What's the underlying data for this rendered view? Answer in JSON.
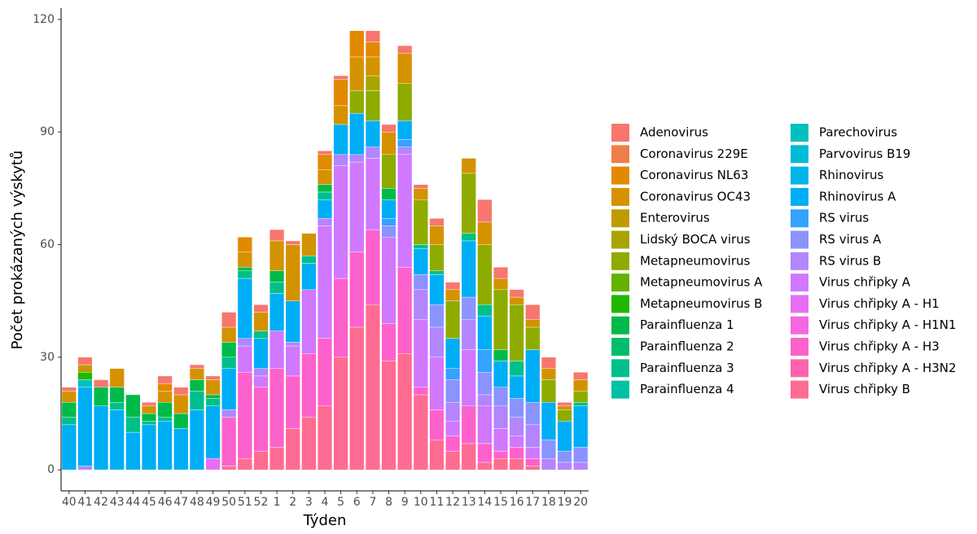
{
  "chart_data": {
    "type": "stacked_bar",
    "x_label": "Týden",
    "y_label": "Počet prokázaných výskytů",
    "categories": [
      "40",
      "41",
      "42",
      "43",
      "44",
      "45",
      "46",
      "47",
      "48",
      "49",
      "50",
      "51",
      "52",
      "1",
      "2",
      "3",
      "4",
      "5",
      "6",
      "7",
      "8",
      "9",
      "10",
      "11",
      "12",
      "13",
      "14",
      "15",
      "16",
      "17",
      "18",
      "19",
      "20"
    ],
    "ylim": [
      -5.6,
      123
    ],
    "yticks": [
      0,
      30,
      60,
      90,
      120
    ],
    "grid": false,
    "legend": "right",
    "series": [
      {
        "name": "Adenovirus",
        "color": "#F8766D",
        "values": [
          1,
          2,
          2,
          0,
          0,
          1,
          2,
          2,
          1,
          1,
          4,
          0,
          2,
          3,
          1,
          0,
          1,
          1,
          0,
          3,
          2,
          2,
          1,
          2,
          2,
          0,
          6,
          3,
          2,
          4,
          3,
          1,
          2
        ]
      },
      {
        "name": "Coronavirus 229E",
        "color": "#EE7F48",
        "values": [
          0,
          0,
          0,
          0,
          0,
          0,
          0,
          0,
          0,
          0,
          0,
          0,
          0,
          0,
          0,
          0,
          0,
          0,
          0,
          0,
          0,
          0,
          0,
          0,
          0,
          0,
          0,
          0,
          0,
          0,
          0,
          0,
          0
        ]
      },
      {
        "name": "Coronavirus NL63",
        "color": "#E38900",
        "values": [
          0,
          0,
          0,
          0,
          0,
          0,
          2,
          0,
          0,
          0,
          0,
          4,
          0,
          0,
          0,
          0,
          4,
          7,
          7,
          4,
          0,
          0,
          0,
          0,
          0,
          0,
          0,
          0,
          0,
          0,
          0,
          0,
          0
        ]
      },
      {
        "name": "Coronavirus OC43",
        "color": "#D49200",
        "values": [
          3,
          0,
          0,
          5,
          0,
          2,
          3,
          5,
          3,
          4,
          4,
          4,
          5,
          8,
          15,
          6,
          4,
          5,
          9,
          5,
          6,
          8,
          3,
          5,
          3,
          4,
          6,
          3,
          2,
          2,
          3,
          1,
          3
        ]
      },
      {
        "name": "Enterovirus",
        "color": "#C09B00",
        "values": [
          0,
          2,
          0,
          0,
          0,
          0,
          0,
          0,
          0,
          0,
          0,
          0,
          0,
          0,
          0,
          0,
          0,
          0,
          0,
          0,
          0,
          0,
          0,
          0,
          0,
          0,
          0,
          0,
          0,
          0,
          0,
          0,
          0
        ]
      },
      {
        "name": "Lidský BOCA virus",
        "color": "#A9A400",
        "values": [
          0,
          0,
          0,
          0,
          0,
          0,
          0,
          0,
          0,
          0,
          0,
          0,
          0,
          0,
          0,
          0,
          0,
          0,
          0,
          4,
          0,
          0,
          0,
          0,
          0,
          0,
          0,
          0,
          0,
          0,
          0,
          0,
          0
        ]
      },
      {
        "name": "Metapneumovirus",
        "color": "#8EAB00",
        "values": [
          0,
          0,
          0,
          0,
          0,
          0,
          0,
          0,
          0,
          0,
          0,
          0,
          0,
          0,
          0,
          0,
          0,
          0,
          6,
          8,
          9,
          10,
          12,
          7,
          10,
          16,
          16,
          16,
          15,
          6,
          6,
          3,
          3
        ]
      },
      {
        "name": "Metapneumovirus A",
        "color": "#64B200",
        "values": [
          0,
          0,
          0,
          0,
          0,
          0,
          0,
          0,
          0,
          0,
          0,
          0,
          0,
          0,
          0,
          0,
          0,
          0,
          0,
          0,
          0,
          0,
          0,
          0,
          0,
          0,
          0,
          0,
          0,
          0,
          0,
          0,
          0
        ]
      },
      {
        "name": "Metapneumovirus B",
        "color": "#1FB700",
        "values": [
          0,
          2,
          0,
          0,
          0,
          0,
          0,
          0,
          0,
          0,
          0,
          0,
          0,
          0,
          0,
          0,
          0,
          0,
          0,
          0,
          0,
          0,
          0,
          0,
          0,
          0,
          0,
          0,
          0,
          0,
          0,
          0,
          0
        ]
      },
      {
        "name": "Parainfluenza 1",
        "color": "#00BA4A",
        "values": [
          4,
          0,
          5,
          4,
          6,
          2,
          4,
          4,
          3,
          1,
          4,
          1,
          0,
          3,
          0,
          0,
          2,
          0,
          0,
          0,
          3,
          0,
          0,
          0,
          0,
          0,
          0,
          3,
          0,
          0,
          0,
          0,
          0
        ]
      },
      {
        "name": "Parainfluenza 2",
        "color": "#00BD6C",
        "values": [
          0,
          0,
          0,
          0,
          0,
          0,
          0,
          0,
          0,
          0,
          0,
          0,
          0,
          0,
          0,
          0,
          0,
          0,
          0,
          0,
          0,
          0,
          0,
          0,
          0,
          0,
          0,
          0,
          0,
          0,
          0,
          0,
          0
        ]
      },
      {
        "name": "Parainfluenza 3",
        "color": "#00BF8A",
        "values": [
          2,
          0,
          0,
          2,
          4,
          1,
          1,
          0,
          5,
          2,
          3,
          2,
          2,
          3,
          0,
          2,
          2,
          0,
          0,
          0,
          0,
          0,
          1,
          1,
          0,
          2,
          3,
          0,
          4,
          0,
          0,
          0,
          1
        ]
      },
      {
        "name": "Parainfluenza 4",
        "color": "#00C0A6",
        "values": [
          0,
          0,
          0,
          0,
          0,
          0,
          0,
          0,
          0,
          0,
          0,
          0,
          0,
          0,
          0,
          0,
          0,
          0,
          0,
          0,
          0,
          0,
          0,
          0,
          0,
          0,
          0,
          0,
          0,
          0,
          0,
          0,
          0
        ]
      },
      {
        "name": "Parechovirus",
        "color": "#00C0BE",
        "values": [
          0,
          2,
          0,
          0,
          0,
          0,
          0,
          0,
          0,
          0,
          0,
          0,
          0,
          0,
          0,
          0,
          0,
          0,
          0,
          0,
          0,
          0,
          0,
          0,
          0,
          0,
          0,
          0,
          0,
          0,
          0,
          0,
          0
        ]
      },
      {
        "name": "Parvovirus B19",
        "color": "#00BCD4",
        "values": [
          0,
          0,
          0,
          0,
          0,
          0,
          0,
          0,
          0,
          0,
          0,
          0,
          0,
          0,
          0,
          0,
          0,
          0,
          0,
          0,
          0,
          0,
          0,
          0,
          0,
          0,
          0,
          0,
          0,
          0,
          0,
          0,
          0
        ]
      },
      {
        "name": "Rhinovirus",
        "color": "#00B6E7",
        "values": [
          0,
          0,
          0,
          0,
          0,
          0,
          0,
          0,
          0,
          0,
          0,
          0,
          0,
          0,
          0,
          0,
          0,
          0,
          0,
          0,
          0,
          0,
          0,
          0,
          0,
          0,
          0,
          0,
          0,
          0,
          0,
          0,
          0
        ]
      },
      {
        "name": "Rhinovirus A",
        "color": "#00AEF6",
        "values": [
          12,
          21,
          17,
          16,
          10,
          12,
          13,
          11,
          16,
          14,
          11,
          16,
          8,
          10,
          11,
          7,
          5,
          8,
          11,
          7,
          5,
          5,
          7,
          8,
          8,
          15,
          9,
          7,
          6,
          14,
          10,
          8,
          11
        ]
      },
      {
        "name": "RS virus",
        "color": "#35A2FF",
        "values": [
          0,
          0,
          0,
          0,
          0,
          0,
          0,
          0,
          0,
          0,
          0,
          0,
          0,
          0,
          0,
          0,
          0,
          0,
          0,
          0,
          2,
          2,
          0,
          0,
          3,
          0,
          6,
          0,
          0,
          0,
          0,
          0,
          0
        ]
      },
      {
        "name": "RS virus A",
        "color": "#8B93FF",
        "values": [
          0,
          0,
          0,
          0,
          0,
          0,
          0,
          0,
          0,
          0,
          0,
          0,
          0,
          0,
          0,
          0,
          0,
          0,
          0,
          0,
          3,
          0,
          4,
          6,
          6,
          6,
          6,
          5,
          5,
          6,
          5,
          3,
          4
        ]
      },
      {
        "name": "RS virus B",
        "color": "#B385FF",
        "values": [
          0,
          1,
          0,
          0,
          0,
          0,
          0,
          0,
          0,
          0,
          2,
          2,
          2,
          0,
          1,
          0,
          2,
          3,
          2,
          3,
          0,
          2,
          8,
          8,
          5,
          8,
          3,
          6,
          5,
          6,
          3,
          2,
          2
        ]
      },
      {
        "name": "Virus chřipky A",
        "color": "#D078FF",
        "values": [
          0,
          0,
          0,
          0,
          0,
          0,
          0,
          0,
          0,
          0,
          0,
          7,
          3,
          10,
          8,
          17,
          30,
          30,
          24,
          19,
          23,
          30,
          18,
          14,
          4,
          15,
          10,
          6,
          3,
          3,
          0,
          0,
          0
        ]
      },
      {
        "name": "Virus chřipky A - H1",
        "color": "#E56EF7",
        "values": [
          0,
          0,
          0,
          0,
          0,
          0,
          0,
          0,
          0,
          3,
          0,
          0,
          0,
          0,
          0,
          0,
          0,
          0,
          0,
          0,
          0,
          0,
          0,
          0,
          0,
          0,
          0,
          0,
          0,
          0,
          0,
          0,
          0
        ]
      },
      {
        "name": "Virus chřipky A - H1N1",
        "color": "#F566E3",
        "values": [
          0,
          0,
          0,
          0,
          0,
          0,
          0,
          0,
          0,
          0,
          0,
          0,
          0,
          0,
          0,
          0,
          0,
          0,
          0,
          0,
          0,
          0,
          0,
          0,
          0,
          0,
          0,
          0,
          0,
          0,
          0,
          0,
          0
        ]
      },
      {
        "name": "Virus chřipky A - H3",
        "color": "#FD62CC",
        "values": [
          0,
          0,
          0,
          0,
          0,
          0,
          0,
          0,
          0,
          0,
          13,
          23,
          17,
          21,
          14,
          17,
          18,
          21,
          20,
          20,
          10,
          23,
          2,
          8,
          4,
          10,
          5,
          2,
          3,
          2,
          0,
          0,
          0
        ]
      },
      {
        "name": "Virus chřipky A - H3N2",
        "color": "#FF63B0",
        "values": [
          0,
          0,
          0,
          0,
          0,
          0,
          0,
          0,
          0,
          0,
          0,
          0,
          0,
          0,
          0,
          0,
          0,
          0,
          0,
          0,
          0,
          0,
          0,
          0,
          0,
          0,
          0,
          0,
          0,
          0,
          0,
          0,
          0
        ]
      },
      {
        "name": "Virus chřipky B",
        "color": "#FF6C91",
        "values": [
          0,
          0,
          0,
          0,
          0,
          0,
          0,
          0,
          0,
          0,
          1,
          3,
          5,
          6,
          11,
          14,
          17,
          30,
          38,
          44,
          29,
          31,
          20,
          8,
          5,
          7,
          2,
          3,
          3,
          1,
          0,
          0,
          0
        ]
      }
    ]
  }
}
